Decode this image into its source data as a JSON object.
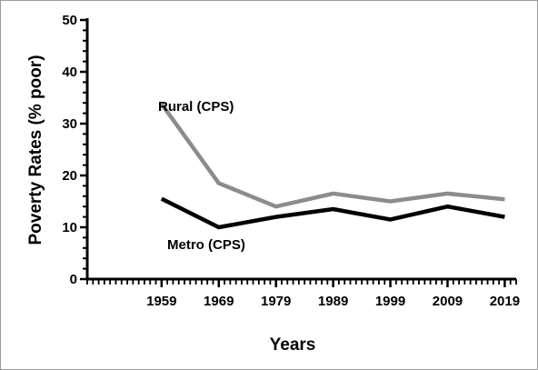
{
  "chart_data": {
    "type": "line",
    "title": "",
    "xlabel": "Years",
    "ylabel": "Poverty Rates (% poor)",
    "x": [
      1959,
      1969,
      1979,
      1989,
      1999,
      2009,
      2019
    ],
    "x_tick_labels": [
      "1959",
      "1969",
      "1979",
      "1989",
      "1999",
      "2009",
      "2019"
    ],
    "y_tick_labels": [
      "0",
      "10",
      "20",
      "30",
      "40",
      "50"
    ],
    "xlim": [
      1946,
      2021
    ],
    "ylim": [
      0,
      50
    ],
    "grid": false,
    "series": [
      {
        "name": "Rural (CPS)",
        "color": "#8c8c8c",
        "values": [
          33.8,
          18.5,
          14.0,
          16.5,
          15.0,
          16.5,
          15.4
        ]
      },
      {
        "name": "Metro (CPS)",
        "color": "#000000",
        "values": [
          15.5,
          10.0,
          12.0,
          13.5,
          11.5,
          14.0,
          12.0
        ]
      }
    ]
  }
}
